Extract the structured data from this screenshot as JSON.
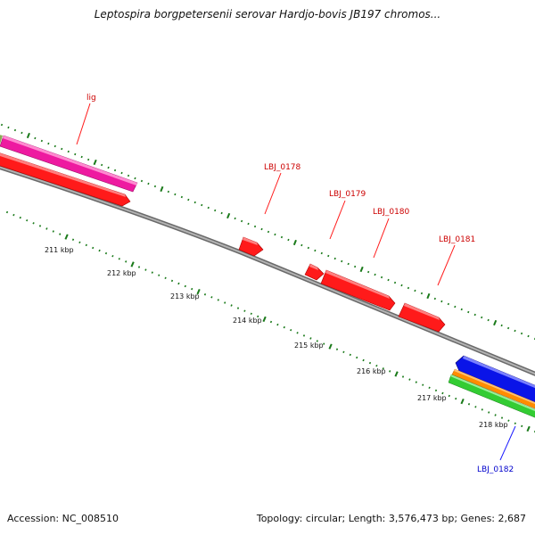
{
  "title": "Leptospira borgpetersenii serovar Hardjo-bovis JB197 chromos...",
  "footer": {
    "accession": "Accession: NC_008510",
    "summary": "Topology: circular; Length: 3,576,473 bp; Genes: 2,687"
  },
  "colors": {
    "backbone": "#7f7f7f",
    "tick": "#1a7a1a",
    "forward_gene": "#ff1a1a",
    "label_forward": "#cc0000",
    "label_reverse": "#0000cc",
    "lig_feature": "#ee1aa0",
    "reverse_gene": "#0a14e8",
    "orange_feature": "#ff8c00",
    "green_feature": "#33cc33"
  },
  "kbp_ticks": [
    "211 kbp",
    "212 kbp",
    "213 kbp",
    "214 kbp",
    "215 kbp",
    "216 kbp",
    "217 kbp",
    "218 kbp"
  ],
  "gene_labels": [
    {
      "id": "lig",
      "text": "lig",
      "strand": "forward"
    },
    {
      "id": "LBJ_0178",
      "text": "LBJ_0178",
      "strand": "forward"
    },
    {
      "id": "LBJ_0179",
      "text": "LBJ_0179",
      "strand": "forward"
    },
    {
      "id": "LBJ_0180",
      "text": "LBJ_0180",
      "strand": "forward"
    },
    {
      "id": "LBJ_0181",
      "text": "LBJ_0181",
      "strand": "forward"
    },
    {
      "id": "LBJ_0182",
      "text": "LBJ_0182",
      "strand": "reverse"
    }
  ]
}
